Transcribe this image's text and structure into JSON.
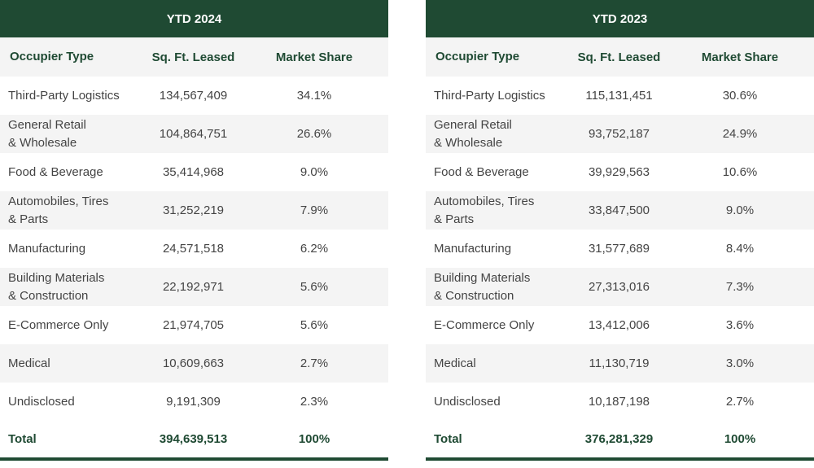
{
  "tables": [
    {
      "title": "YTD 2024",
      "headers": [
        "Occupier Type",
        "Sq. Ft. Leased",
        "Market Share"
      ],
      "rows": [
        [
          "Third-Party Logistics",
          "134,567,409",
          "34.1%"
        ],
        [
          "General Retail\n& Wholesale",
          "104,864,751",
          "26.6%"
        ],
        [
          "Food & Beverage",
          "35,414,968",
          "9.0%"
        ],
        [
          "Automobiles, Tires\n& Parts",
          "31,252,219",
          "7.9%"
        ],
        [
          " Manufacturing",
          "24,571,518",
          "6.2%"
        ],
        [
          "Building Materials\n& Construction",
          "22,192,971",
          "5.6%"
        ],
        [
          "E-Commerce Only",
          "21,974,705",
          "5.6%"
        ],
        [
          "Medical",
          "10,609,663",
          "2.7%"
        ],
        [
          "Undisclosed",
          "9,191,309",
          "2.3%"
        ]
      ],
      "total": [
        "Total",
        "394,639,513",
        "100%"
      ]
    },
    {
      "title": "YTD 2023",
      "headers": [
        "Occupier Type",
        "Sq. Ft. Leased",
        "Market Share"
      ],
      "rows": [
        [
          "Third-Party Logistics",
          "115,131,451",
          "30.6%"
        ],
        [
          "General Retail\n& Wholesale",
          "93,752,187",
          "24.9%"
        ],
        [
          "Food & Beverage",
          "39,929,563",
          "10.6%"
        ],
        [
          "Automobiles, Tires\n& Parts",
          "33,847,500",
          "9.0%"
        ],
        [
          " Manufacturing",
          "31,577,689",
          "8.4%"
        ],
        [
          "Building Materials\n& Construction",
          "27,313,016",
          "7.3%"
        ],
        [
          "E-Commerce Only",
          "13,412,006",
          "3.6%"
        ],
        [
          "Medical",
          "11,130,719",
          "3.0%"
        ],
        [
          "Undisclosed",
          "10,187,198",
          "2.7%"
        ]
      ],
      "total": [
        "Total",
        "376,281,329",
        "100%"
      ]
    }
  ],
  "colors": {
    "header_bg": "#1f4a33",
    "stripe": "#f4f4f4"
  }
}
